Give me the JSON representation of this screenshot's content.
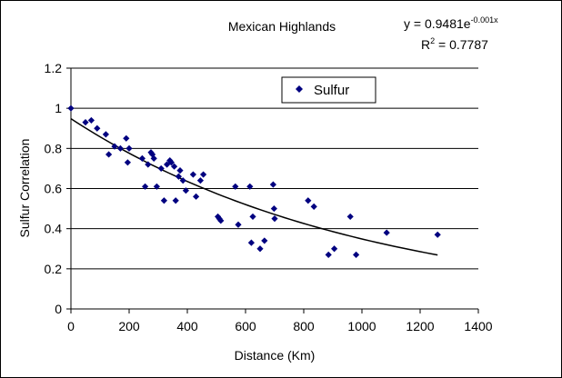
{
  "chart_data": {
    "type": "scatter",
    "title": "Mexican Highlands",
    "xlabel": "Distance (Km)",
    "ylabel": "Sulfur Correlation",
    "xlim": [
      0,
      1400
    ],
    "ylim": [
      0,
      1.2
    ],
    "x_ticks": [
      "0",
      "200",
      "400",
      "600",
      "800",
      "1000",
      "1200",
      "1400"
    ],
    "y_ticks": [
      "0",
      "0.2",
      "0.4",
      "0.6",
      "0.8",
      "1",
      "1.2"
    ],
    "grid": "horizontal",
    "legend_position": "top-center",
    "marker_color": "#000080",
    "series": [
      {
        "name": "Sulfur",
        "points": [
          [
            0,
            1.0
          ],
          [
            50,
            0.93
          ],
          [
            70,
            0.94
          ],
          [
            90,
            0.9
          ],
          [
            120,
            0.87
          ],
          [
            130,
            0.77
          ],
          [
            150,
            0.81
          ],
          [
            170,
            0.8
          ],
          [
            190,
            0.85
          ],
          [
            195,
            0.73
          ],
          [
            200,
            0.8
          ],
          [
            245,
            0.75
          ],
          [
            255,
            0.61
          ],
          [
            265,
            0.72
          ],
          [
            275,
            0.78
          ],
          [
            280,
            0.77
          ],
          [
            285,
            0.75
          ],
          [
            295,
            0.61
          ],
          [
            310,
            0.7
          ],
          [
            320,
            0.54
          ],
          [
            330,
            0.72
          ],
          [
            340,
            0.74
          ],
          [
            345,
            0.73
          ],
          [
            355,
            0.71
          ],
          [
            360,
            0.54
          ],
          [
            370,
            0.66
          ],
          [
            375,
            0.69
          ],
          [
            385,
            0.64
          ],
          [
            395,
            0.59
          ],
          [
            420,
            0.67
          ],
          [
            430,
            0.56
          ],
          [
            445,
            0.64
          ],
          [
            455,
            0.67
          ],
          [
            505,
            0.46
          ],
          [
            510,
            0.45
          ],
          [
            515,
            0.44
          ],
          [
            565,
            0.61
          ],
          [
            575,
            0.42
          ],
          [
            615,
            0.61
          ],
          [
            620,
            0.33
          ],
          [
            625,
            0.46
          ],
          [
            650,
            0.3
          ],
          [
            665,
            0.34
          ],
          [
            695,
            0.62
          ],
          [
            700,
            0.45
          ],
          [
            698,
            0.5
          ],
          [
            815,
            0.54
          ],
          [
            835,
            0.51
          ],
          [
            960,
            0.46
          ],
          [
            885,
            0.27
          ],
          [
            905,
            0.3
          ],
          [
            980,
            0.27
          ],
          [
            1085,
            0.38
          ],
          [
            1260,
            0.37
          ]
        ]
      }
    ],
    "trendline": {
      "type": "exponential",
      "a": 0.9481,
      "b": -0.001,
      "x_start": 0,
      "x_end": 1260,
      "color": "#000000"
    },
    "annotations": {
      "equation_main": "y = 0.9481e",
      "equation_exponent": "-0.001x",
      "r2_label": "R",
      "r2_sup": "2",
      "r2_value": " = 0.7787"
    }
  }
}
